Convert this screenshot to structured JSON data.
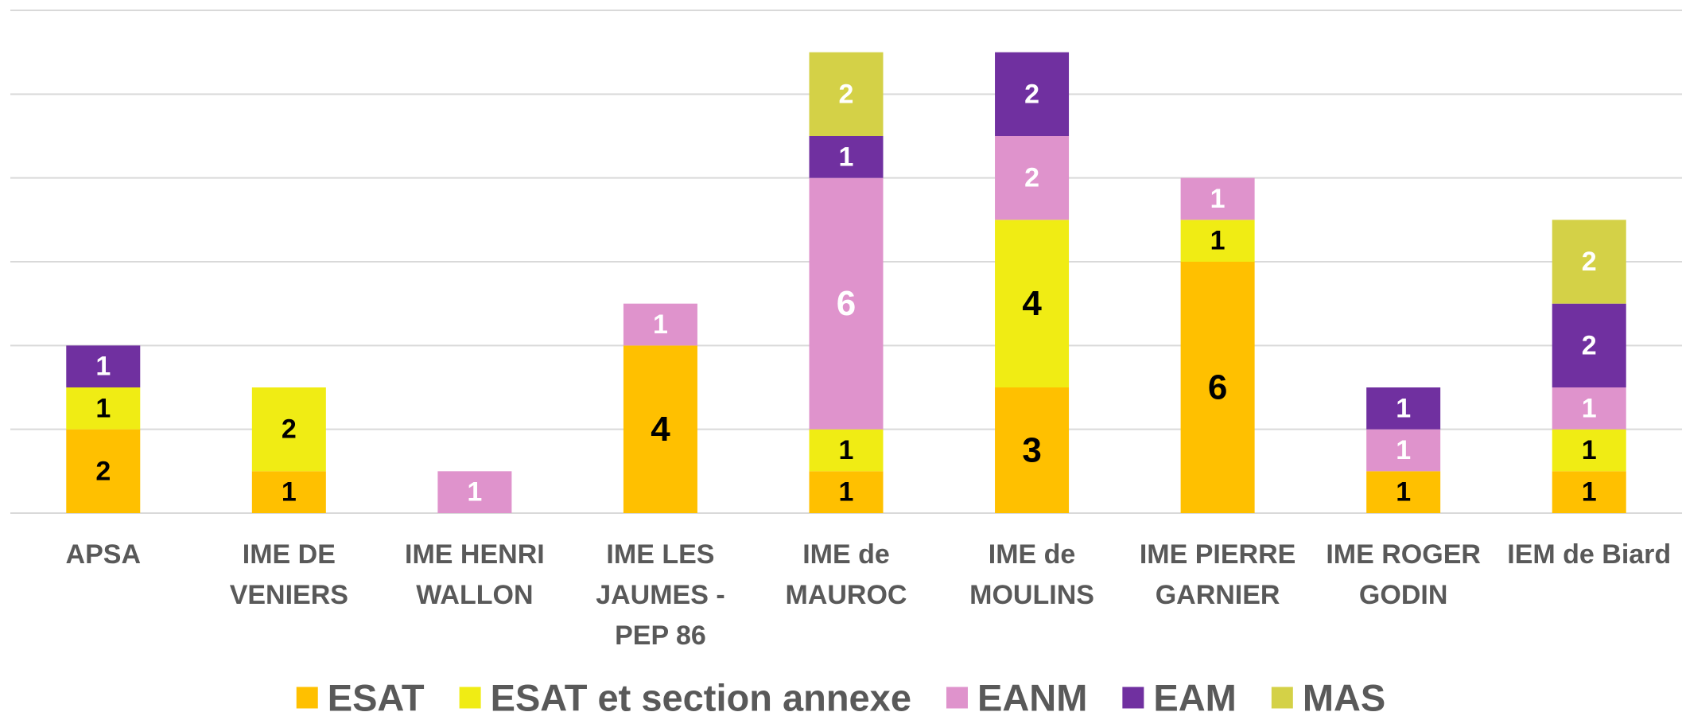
{
  "chart_data": {
    "type": "bar",
    "stacked": true,
    "categories": [
      "APSA",
      "IME DE VENIERS",
      "IME HENRI WALLON",
      "IME LES JAUMES - PEP 86",
      "IME de MAUROC",
      "IME de MOULINS",
      "IME PIERRE GARNIER",
      "IME ROGER GODIN",
      "IEM de Biard"
    ],
    "series": [
      {
        "name": "ESAT",
        "color": "#ffc000",
        "label_color": "#000000",
        "values": [
          2,
          1,
          null,
          4,
          1,
          3,
          6,
          1,
          1
        ]
      },
      {
        "name": "ESAT et section annexe",
        "color": "#f0ec14",
        "label_color": "#000000",
        "values": [
          1,
          2,
          null,
          null,
          1,
          4,
          1,
          null,
          1
        ]
      },
      {
        "name": "EANM",
        "color": "#df93cc",
        "label_color": "#ffffff",
        "values": [
          null,
          null,
          1,
          1,
          6,
          2,
          1,
          1,
          1
        ]
      },
      {
        "name": "EAM",
        "color": "#7030a0",
        "label_color": "#ffffff",
        "values": [
          1,
          null,
          null,
          null,
          1,
          2,
          null,
          1,
          2
        ]
      },
      {
        "name": "MAS",
        "color": "#d4d147",
        "label_color": "#ffffff",
        "values": [
          null,
          null,
          null,
          null,
          2,
          null,
          null,
          null,
          2
        ]
      }
    ],
    "ylim": [
      0,
      12
    ],
    "yticks": [
      0,
      2,
      4,
      6,
      8,
      10,
      12
    ],
    "grid": true,
    "legend": "bottom"
  }
}
